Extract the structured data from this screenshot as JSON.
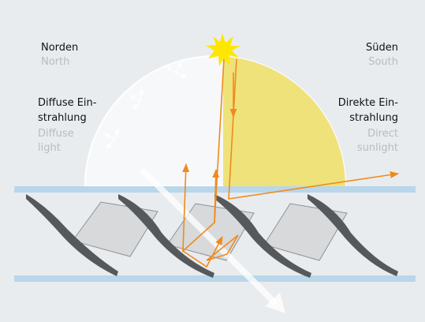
{
  "labels": {
    "north": {
      "de": "Norden",
      "en": "North"
    },
    "south": {
      "de": "Süden",
      "en": "South"
    },
    "diffuse": {
      "de": [
        "Diffuse Ein-",
        "strahlung"
      ],
      "en": [
        "Diffuse",
        "light"
      ]
    },
    "direct": {
      "de": [
        "Direkte Ein-",
        "strahlung"
      ],
      "en": [
        "Direct",
        "sunlight"
      ]
    }
  }
}
